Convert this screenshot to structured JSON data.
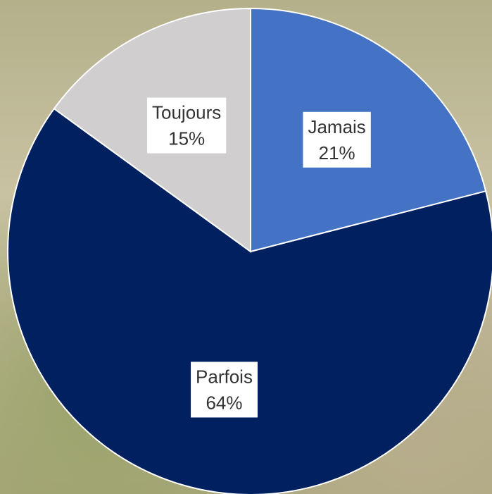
{
  "chart_data": {
    "type": "pie",
    "categories": [
      "Jamais",
      "Parfois",
      "Toujours"
    ],
    "values": [
      21,
      64,
      15
    ],
    "value_labels": [
      "21%",
      "64%",
      "15%"
    ],
    "colors": [
      "#4472c4",
      "#002060",
      "#d0cece"
    ]
  }
}
